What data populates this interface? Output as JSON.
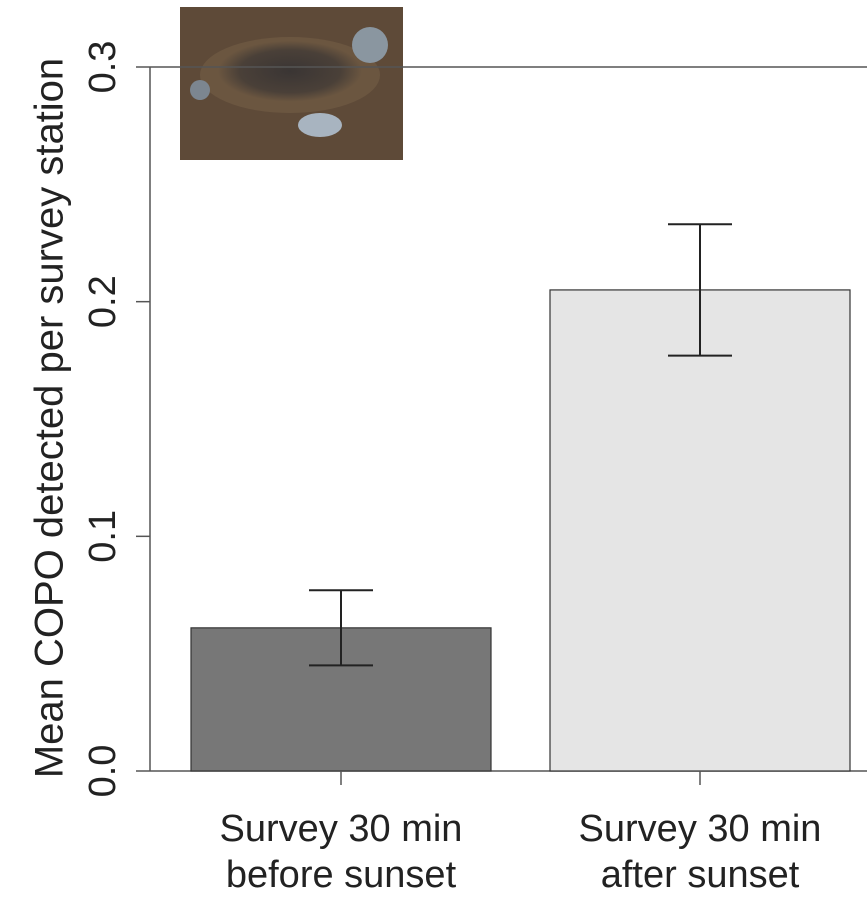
{
  "chart_data": {
    "type": "bar",
    "y_label": "Mean COPO detected per survey station",
    "categories": [
      "Survey 30 min before sunset",
      "Survey 30 min after sunset"
    ],
    "values": [
      0.061,
      0.205
    ],
    "errors": [
      0.016,
      0.028
    ],
    "colors": [
      "#777777",
      "#e5e5e5"
    ],
    "ylim": [
      0,
      0.3
    ],
    "yticks": [
      {
        "value": 0,
        "label": "0.0"
      },
      0.1,
      0.2,
      0.3
    ]
  }
}
